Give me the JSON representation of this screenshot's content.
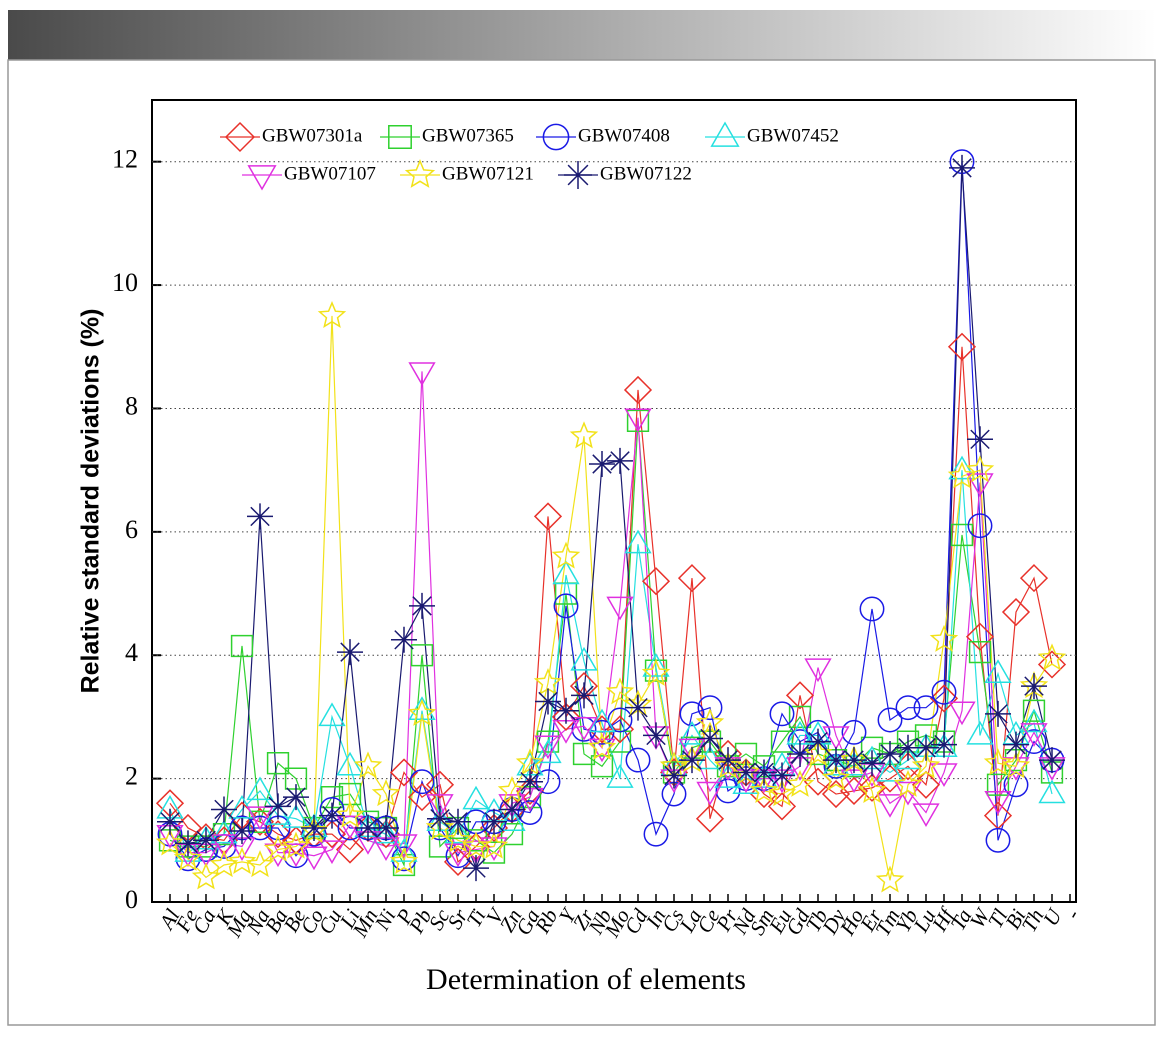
{
  "chart_data": {
    "type": "line",
    "xlabel": "Determination of elements",
    "ylabel": "Relative standard deviations (%)",
    "categories": [
      "Al",
      "Fe",
      "Ca",
      "K",
      "Mg",
      "Na",
      "Ba",
      "Be",
      "Co",
      "Cu",
      "Li",
      "Mn",
      "Ni",
      "P",
      "Pb",
      "Sc",
      "Sr",
      "Ti",
      "V",
      "Zn",
      "Ga",
      "Rb",
      "Y",
      "Zr",
      "Nb",
      "Mo",
      "Cd",
      "In",
      "Cs",
      "La",
      "Ce",
      "Pr",
      "Nd",
      "Sm",
      "Eu",
      "Gd",
      "Tb",
      "Dy",
      "Ho",
      "Er",
      "Tm",
      "Yb",
      "Lu",
      "Hf",
      "Ta",
      "W",
      "Tl",
      "Bi",
      "Th",
      "U",
      "-"
    ],
    "ylim": [
      0,
      13
    ],
    "yticks": [
      0,
      2,
      4,
      6,
      8,
      10,
      12
    ],
    "grid": true,
    "series": [
      {
        "name": "GBW07301a",
        "marker": "diamond",
        "color": "#e8312a",
        "values": [
          1.6,
          1.2,
          1.05,
          1.0,
          1.4,
          1.3,
          1.1,
          1.0,
          1.1,
          1.1,
          0.85,
          1.2,
          1.1,
          2.1,
          1.7,
          1.9,
          0.65,
          0.9,
          1.2,
          1.5,
          1.8,
          6.25,
          3.0,
          3.5,
          2.8,
          2.8,
          8.3,
          5.2,
          2.1,
          5.25,
          1.35,
          2.4,
          2.1,
          1.75,
          1.55,
          3.35,
          1.95,
          1.75,
          1.8,
          1.85,
          2.0,
          2.2,
          1.9,
          3.3,
          9.0,
          4.3,
          1.4,
          4.7,
          5.25,
          3.85,
          null
        ]
      },
      {
        "name": "GBW07365",
        "marker": "square",
        "color": "#2fd12f",
        "values": [
          1.0,
          0.9,
          0.9,
          1.1,
          4.15,
          1.3,
          2.25,
          2.0,
          1.2,
          1.7,
          1.75,
          1.3,
          1.2,
          0.6,
          4.0,
          0.9,
          1.2,
          1.0,
          0.8,
          1.1,
          1.7,
          2.6,
          5.0,
          2.4,
          2.2,
          2.6,
          7.8,
          3.75,
          2.1,
          2.5,
          2.6,
          2.2,
          2.4,
          2.2,
          2.6,
          3.0,
          2.4,
          2.3,
          2.2,
          2.5,
          2.4,
          2.6,
          2.7,
          2.6,
          5.95,
          4.05,
          1.9,
          2.3,
          3.1,
          2.1,
          null
        ]
      },
      {
        "name": "GBW07408",
        "marker": "circle",
        "color": "#1a1ae6",
        "values": [
          1.1,
          0.7,
          0.85,
          0.9,
          1.2,
          1.2,
          1.2,
          0.75,
          1.1,
          1.5,
          1.2,
          1.2,
          1.2,
          0.7,
          1.95,
          1.2,
          0.75,
          1.3,
          1.3,
          1.5,
          1.45,
          1.95,
          4.8,
          2.8,
          2.75,
          2.95,
          2.3,
          1.1,
          1.75,
          3.05,
          3.15,
          1.8,
          2.0,
          2.0,
          3.05,
          2.6,
          2.75,
          2.2,
          2.75,
          4.75,
          2.95,
          3.15,
          3.15,
          3.4,
          12.0,
          6.1,
          1.0,
          1.9,
          2.6,
          2.3,
          null
        ]
      },
      {
        "name": "GBW07452",
        "marker": "triangle",
        "color": "#25e0e0",
        "values": [
          1.5,
          0.8,
          1.0,
          1.1,
          1.5,
          1.8,
          1.4,
          1.35,
          1.2,
          3.0,
          2.2,
          1.2,
          1.1,
          0.8,
          3.1,
          1.3,
          1.1,
          1.65,
          1.45,
          1.3,
          2.2,
          2.4,
          5.3,
          3.9,
          2.9,
          2.0,
          5.8,
          3.8,
          2.2,
          2.7,
          2.3,
          2.0,
          1.9,
          2.0,
          2.2,
          2.7,
          2.7,
          2.2,
          2.2,
          2.3,
          2.1,
          2.3,
          2.5,
          2.5,
          7.0,
          2.7,
          3.7,
          2.7,
          2.9,
          1.75,
          null
        ]
      },
      {
        "name": "GBW07107",
        "marker": "triangle-down",
        "color": "#e030e0",
        "values": [
          1.1,
          0.8,
          0.8,
          0.95,
          0.9,
          1.4,
          0.8,
          0.8,
          0.75,
          0.85,
          1.25,
          1.0,
          0.9,
          0.95,
          8.6,
          1.6,
          0.8,
          0.85,
          0.9,
          1.6,
          1.7,
          2.55,
          2.8,
          2.85,
          2.5,
          4.8,
          7.85,
          2.7,
          2.0,
          2.5,
          1.8,
          2.2,
          2.0,
          2.0,
          2.0,
          2.2,
          3.8,
          2.7,
          2.0,
          2.1,
          1.6,
          1.8,
          1.45,
          2.1,
          3.1,
          6.8,
          1.65,
          2.2,
          2.75,
          2.2,
          null
        ]
      },
      {
        "name": "GBW07121",
        "marker": "star",
        "color": "#f2e21a",
        "values": [
          0.95,
          0.7,
          0.4,
          0.6,
          0.65,
          0.6,
          0.85,
          0.9,
          1.15,
          9.5,
          1.4,
          2.2,
          1.75,
          0.65,
          3.05,
          1.2,
          1.0,
          0.9,
          0.9,
          1.8,
          2.25,
          3.55,
          5.6,
          7.55,
          2.5,
          3.4,
          3.2,
          3.7,
          2.2,
          2.3,
          2.9,
          2.2,
          2.1,
          1.8,
          1.75,
          1.9,
          2.4,
          2.0,
          2.3,
          1.8,
          0.35,
          1.9,
          2.2,
          4.25,
          6.9,
          7.0,
          2.25,
          2.2,
          3.5,
          3.95,
          null
        ]
      },
      {
        "name": "GBW07122",
        "marker": "asterisk",
        "color": "#1a1a70",
        "values": [
          1.3,
          0.95,
          1.0,
          1.5,
          1.15,
          6.25,
          1.55,
          1.7,
          1.2,
          1.4,
          4.05,
          1.2,
          1.2,
          4.25,
          4.8,
          1.35,
          1.3,
          0.55,
          1.3,
          1.5,
          1.95,
          3.25,
          3.1,
          3.35,
          7.1,
          7.15,
          3.15,
          2.7,
          2.05,
          2.3,
          2.65,
          2.3,
          2.1,
          2.1,
          2.05,
          2.4,
          2.6,
          2.3,
          2.3,
          2.25,
          2.4,
          2.5,
          2.5,
          2.55,
          11.9,
          7.5,
          3.05,
          2.55,
          3.5,
          2.3,
          null
        ]
      }
    ]
  }
}
